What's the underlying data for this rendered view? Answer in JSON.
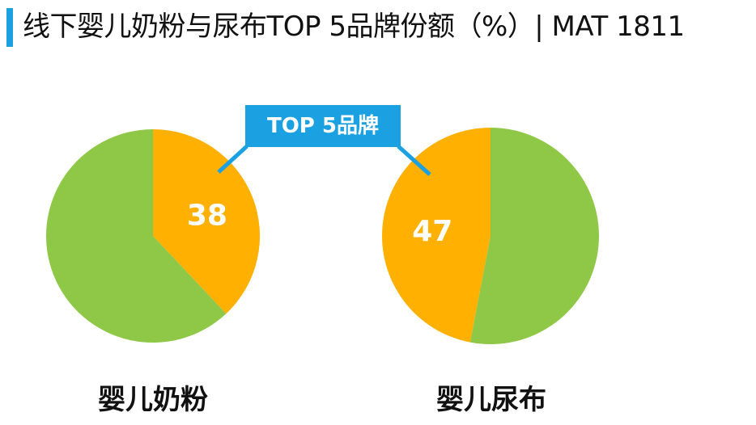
{
  "title": "线下婴儿奶粉与尿布TOP 5品牌份额（%）| MAT 1811",
  "callout_label": "TOP 5品牌",
  "colors": {
    "accent": "#1ba1e2",
    "top5": "#ffb000",
    "others": "#8fc846"
  },
  "chart_data": [
    {
      "type": "pie",
      "name": "婴儿奶粉",
      "slices": [
        {
          "label": "TOP 5品牌",
          "value": 38
        },
        {
          "label": "",
          "value": 62
        }
      ]
    },
    {
      "type": "pie",
      "name": "婴儿尿布",
      "slices": [
        {
          "label": "TOP 5品牌",
          "value": 47
        },
        {
          "label": "",
          "value": 53
        }
      ]
    }
  ]
}
